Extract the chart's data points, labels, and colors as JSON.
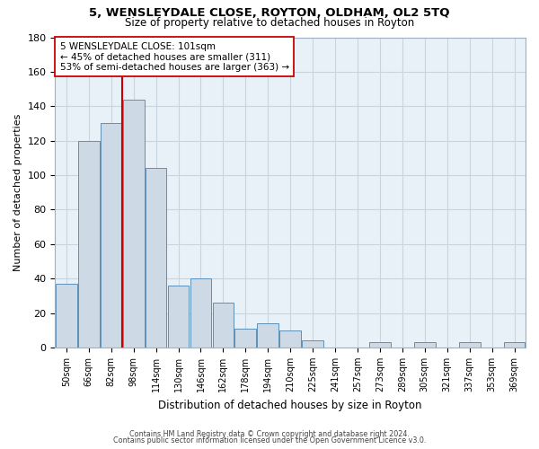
{
  "title": "5, WENSLEYDALE CLOSE, ROYTON, OLDHAM, OL2 5TQ",
  "subtitle": "Size of property relative to detached houses in Royton",
  "xlabel": "Distribution of detached houses by size in Royton",
  "ylabel": "Number of detached properties",
  "bar_color": "#cdd9e5",
  "bar_edge_color": "#6090b8",
  "annotation_box_edge": "#cc0000",
  "annotation_line_color": "#cc0000",
  "background_color": "#ffffff",
  "grid_color": "#c8d4de",
  "bins": [
    "50sqm",
    "66sqm",
    "82sqm",
    "98sqm",
    "114sqm",
    "130sqm",
    "146sqm",
    "162sqm",
    "178sqm",
    "194sqm",
    "210sqm",
    "225sqm",
    "241sqm",
    "257sqm",
    "273sqm",
    "289sqm",
    "305sqm",
    "321sqm",
    "337sqm",
    "353sqm",
    "369sqm"
  ],
  "values": [
    37,
    120,
    130,
    144,
    104,
    36,
    40,
    26,
    11,
    14,
    10,
    4,
    0,
    0,
    3,
    0,
    3,
    0,
    3,
    0,
    3
  ],
  "property_bin_index": 3,
  "annotation_title": "5 WENSLEYDALE CLOSE: 101sqm",
  "annotation_line1": "← 45% of detached houses are smaller (311)",
  "annotation_line2": "53% of semi-detached houses are larger (363) →",
  "ylim": [
    0,
    180
  ],
  "yticks": [
    0,
    20,
    40,
    60,
    80,
    100,
    120,
    140,
    160,
    180
  ],
  "footnote1": "Contains HM Land Registry data © Crown copyright and database right 2024.",
  "footnote2": "Contains public sector information licensed under the Open Government Licence v3.0."
}
